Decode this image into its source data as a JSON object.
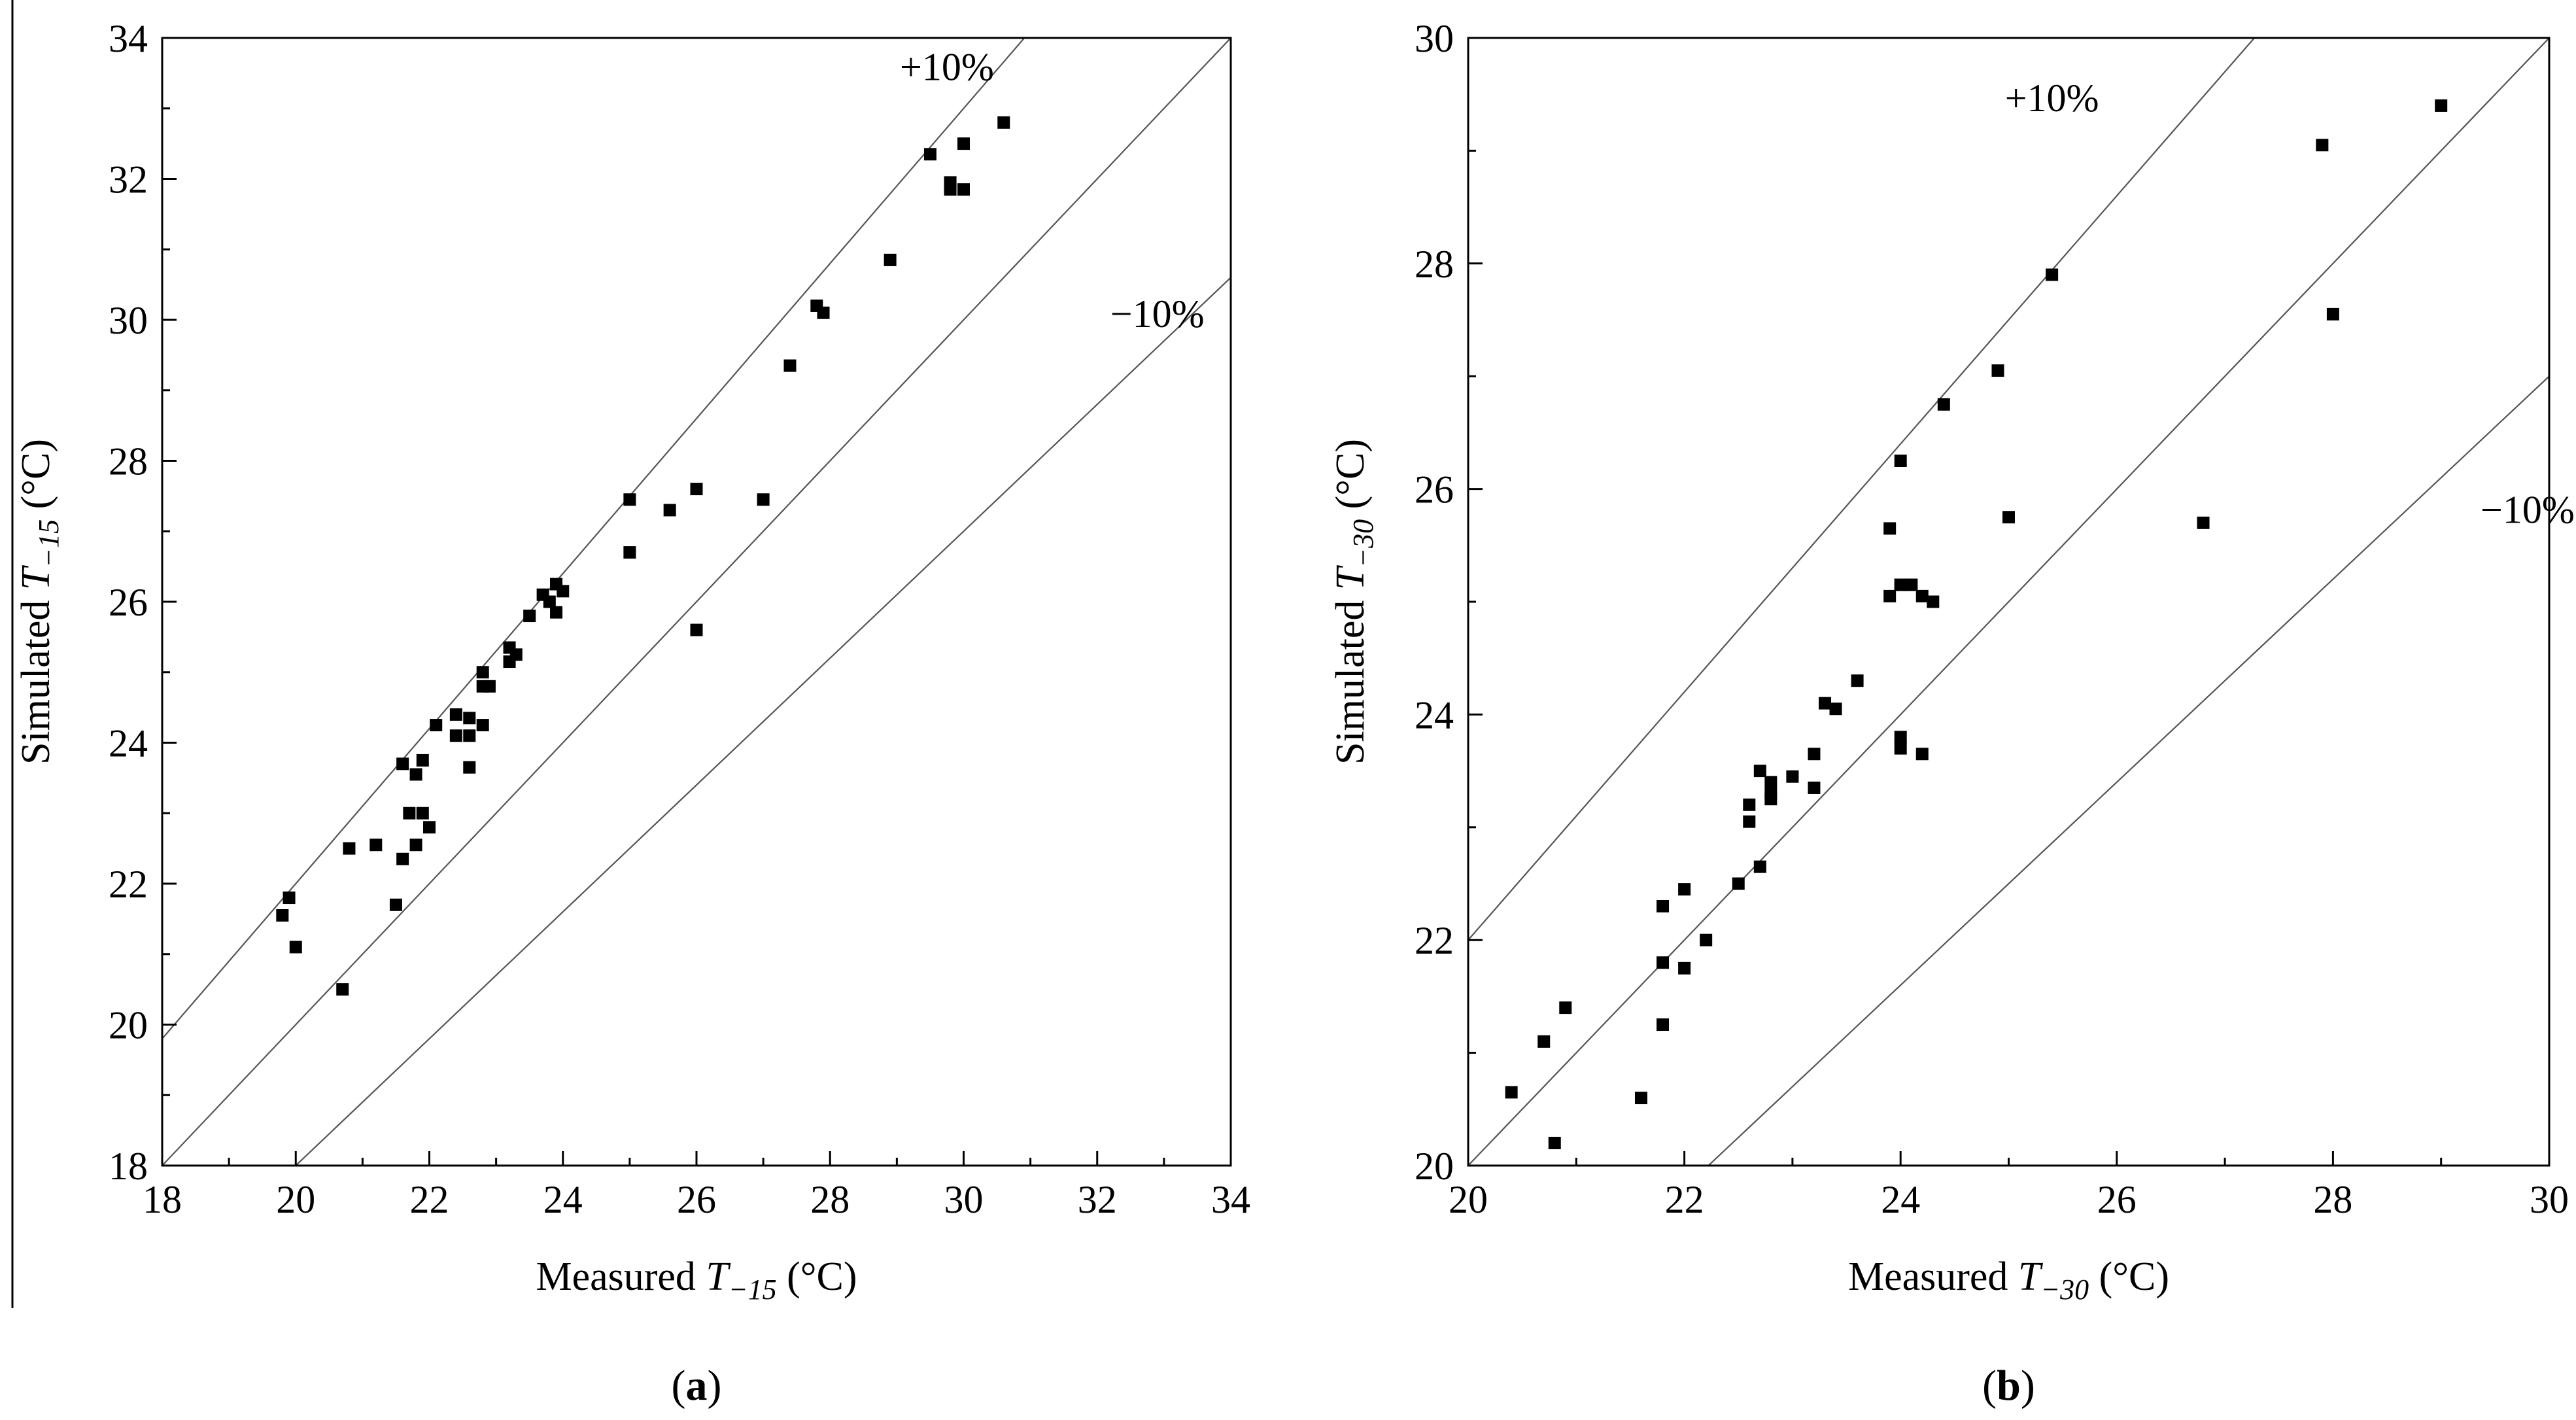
{
  "figure": {
    "colors": {
      "points": "#000000",
      "reference_lines": "#555555",
      "frame": "#000000",
      "background": "#ffffff"
    }
  },
  "chart_data": [
    {
      "type": "scatter",
      "panel_label": "a",
      "title": "",
      "xlabel": {
        "prefix": "Measured ",
        "var": "T",
        "sub": "−15",
        "suffix": " (°C)"
      },
      "ylabel": {
        "prefix": "Simulated ",
        "var": "T",
        "sub": "−15",
        "suffix": " (°C)"
      },
      "xlim": [
        18,
        34
      ],
      "ylim": [
        18,
        34
      ],
      "xticks": [
        18,
        20,
        22,
        24,
        26,
        28,
        30,
        32,
        34
      ],
      "yticks": [
        18,
        20,
        22,
        24,
        26,
        28,
        30,
        32,
        34
      ],
      "xtick_labels": [
        "18",
        "20",
        "22",
        "24",
        "26",
        "28",
        "30",
        "32",
        "34"
      ],
      "ytick_labels": [
        "18",
        "20",
        "22",
        "24",
        "26",
        "28",
        "30",
        "32",
        "34"
      ],
      "grid": false,
      "reference_lines": [
        {
          "name": "+10%",
          "slope": 1.1,
          "label": "+10%",
          "label_anchor": [
            29.75,
            33.4
          ]
        },
        {
          "name": "1:1",
          "slope": 1.0,
          "label": ""
        },
        {
          "name": "-10%",
          "slope": 0.9,
          "label": "−10%",
          "label_anchor": [
            32.9,
            29.9
          ]
        }
      ],
      "series": [
        {
          "name": "Simulated vs measured",
          "marker": "square",
          "x": [
            19.8,
            19.9,
            20.0,
            20.7,
            20.8,
            21.2,
            21.5,
            21.6,
            21.6,
            21.7,
            21.8,
            21.8,
            21.9,
            21.9,
            22.0,
            22.1,
            22.4,
            22.4,
            22.6,
            22.6,
            22.6,
            22.8,
            22.8,
            22.8,
            22.9,
            23.2,
            23.2,
            23.3,
            23.5,
            23.7,
            23.8,
            23.9,
            23.9,
            24.0,
            25.0,
            25.0,
            25.6,
            26.0,
            26.0,
            27.0,
            27.4,
            27.8,
            27.9,
            28.9,
            29.5,
            29.8,
            29.8,
            30.0,
            30.0,
            30.6
          ],
          "y": [
            21.55,
            21.8,
            21.1,
            20.5,
            22.5,
            22.55,
            21.7,
            22.35,
            23.7,
            23.0,
            23.55,
            22.55,
            23.75,
            23.0,
            22.8,
            24.25,
            24.4,
            24.1,
            24.35,
            24.1,
            23.65,
            24.25,
            25.0,
            24.8,
            24.8,
            25.35,
            25.15,
            25.25,
            25.8,
            26.1,
            26.0,
            26.25,
            25.85,
            26.15,
            27.45,
            26.7,
            27.3,
            27.6,
            25.6,
            27.45,
            29.35,
            30.2,
            30.1,
            30.85,
            32.35,
            31.95,
            31.85,
            32.5,
            31.85,
            32.8
          ]
        }
      ]
    },
    {
      "type": "scatter",
      "panel_label": "b",
      "title": "",
      "xlabel": {
        "prefix": "Measured ",
        "var": "T",
        "sub": "−30",
        "suffix": " (°C)"
      },
      "ylabel": {
        "prefix": "Simulated ",
        "var": "T",
        "sub": "−30",
        "suffix": " (°C)"
      },
      "xlim": [
        20,
        30
      ],
      "ylim": [
        20,
        30
      ],
      "xticks": [
        20,
        22,
        24,
        26,
        28,
        30
      ],
      "yticks": [
        20,
        22,
        24,
        26,
        28,
        30
      ],
      "xtick_labels": [
        "20",
        "22",
        "24",
        "26",
        "28",
        "30"
      ],
      "ytick_labels": [
        "20",
        "22",
        "24",
        "26",
        "28",
        "30"
      ],
      "grid": false,
      "reference_lines": [
        {
          "name": "+10%",
          "slope": 1.1,
          "label": "+10%",
          "label_anchor": [
            25.4,
            29.35
          ]
        },
        {
          "name": "1:1",
          "slope": 1.0,
          "label": ""
        },
        {
          "name": "-10%",
          "slope": 0.9,
          "label": "−10%",
          "label_anchor": [
            29.8,
            25.7
          ]
        }
      ],
      "series": [
        {
          "name": "Simulated vs measured",
          "marker": "square",
          "x": [
            20.4,
            20.7,
            20.8,
            20.9,
            21.6,
            21.8,
            21.8,
            21.8,
            22.0,
            22.0,
            22.2,
            22.5,
            22.6,
            22.6,
            22.7,
            22.7,
            22.8,
            22.8,
            22.8,
            23.0,
            23.2,
            23.2,
            23.3,
            23.4,
            23.6,
            23.9,
            23.9,
            24.0,
            24.0,
            24.0,
            24.0,
            24.0,
            24.1,
            24.1,
            24.2,
            24.2,
            24.3,
            24.4,
            24.9,
            25.0,
            25.4,
            26.8,
            27.9,
            28.0,
            29.0
          ],
          "y": [
            20.65,
            21.1,
            20.2,
            21.4,
            20.6,
            22.3,
            21.8,
            21.25,
            22.45,
            21.75,
            22.0,
            22.5,
            23.2,
            23.05,
            23.5,
            22.65,
            23.4,
            23.3,
            23.25,
            23.45,
            23.65,
            23.35,
            24.1,
            24.05,
            24.3,
            25.65,
            25.05,
            26.25,
            25.15,
            23.8,
            23.7,
            25.15,
            25.15,
            25.15,
            25.05,
            23.65,
            25.0,
            26.75,
            27.05,
            25.75,
            27.9,
            25.7,
            29.05,
            27.55,
            29.4
          ]
        }
      ]
    }
  ]
}
